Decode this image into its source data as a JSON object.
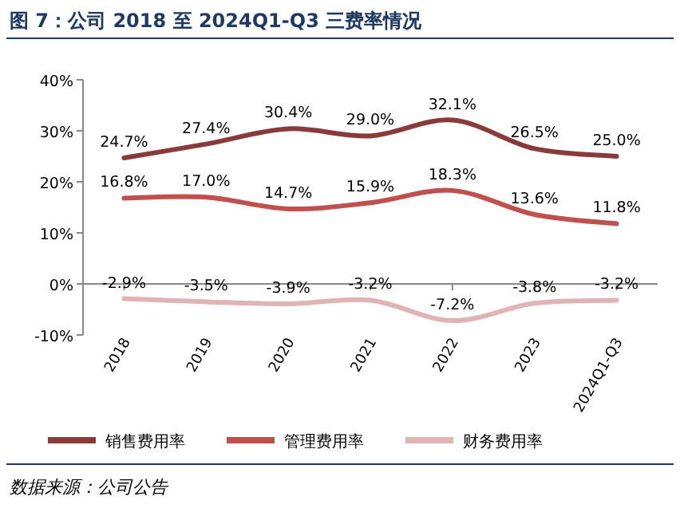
{
  "chart_data": {
    "type": "line",
    "title": "图 7：公司 2018 至 2024Q1-Q3 三费率情况",
    "categories": [
      "2018",
      "2019",
      "2020",
      "2021",
      "2022",
      "2023",
      "2024Q1-Q3"
    ],
    "series": [
      {
        "name": "销售费用率",
        "color": "#8b3a3a",
        "values": [
          24.7,
          27.4,
          30.4,
          29.0,
          32.1,
          26.5,
          25.0
        ],
        "value_labels": [
          "24.7%",
          "27.4%",
          "30.4%",
          "29.0%",
          "32.1%",
          "26.5%",
          "25.0%"
        ]
      },
      {
        "name": "管理费用率",
        "color": "#c0504d",
        "values": [
          16.8,
          17.0,
          14.7,
          15.9,
          18.3,
          13.6,
          11.8
        ],
        "value_labels": [
          "16.8%",
          "17.0%",
          "14.7%",
          "15.9%",
          "18.3%",
          "13.6%",
          "11.8%"
        ]
      },
      {
        "name": "财务费用率",
        "color": "#e0b4b4",
        "values": [
          -2.9,
          -3.5,
          -3.9,
          -3.2,
          -7.2,
          -3.8,
          -3.2
        ],
        "value_labels": [
          "-2.9%",
          "-3.5%",
          "-3.9%",
          "-3.2%",
          "-7.2%",
          "-3.8%",
          "-3.2%"
        ]
      }
    ],
    "ylim": [
      -10,
      40
    ],
    "yticks": [
      {
        "value": -10,
        "label": "-10%"
      },
      {
        "value": 0,
        "label": "0%"
      },
      {
        "value": 10,
        "label": "10%"
      },
      {
        "value": 20,
        "label": "20%"
      },
      {
        "value": 30,
        "label": "30%"
      },
      {
        "value": 40,
        "label": "40%"
      }
    ],
    "legend": "bottom",
    "marker": "none",
    "line_style": "solid",
    "annotations": [
      "数据来源：公司公告"
    ]
  }
}
